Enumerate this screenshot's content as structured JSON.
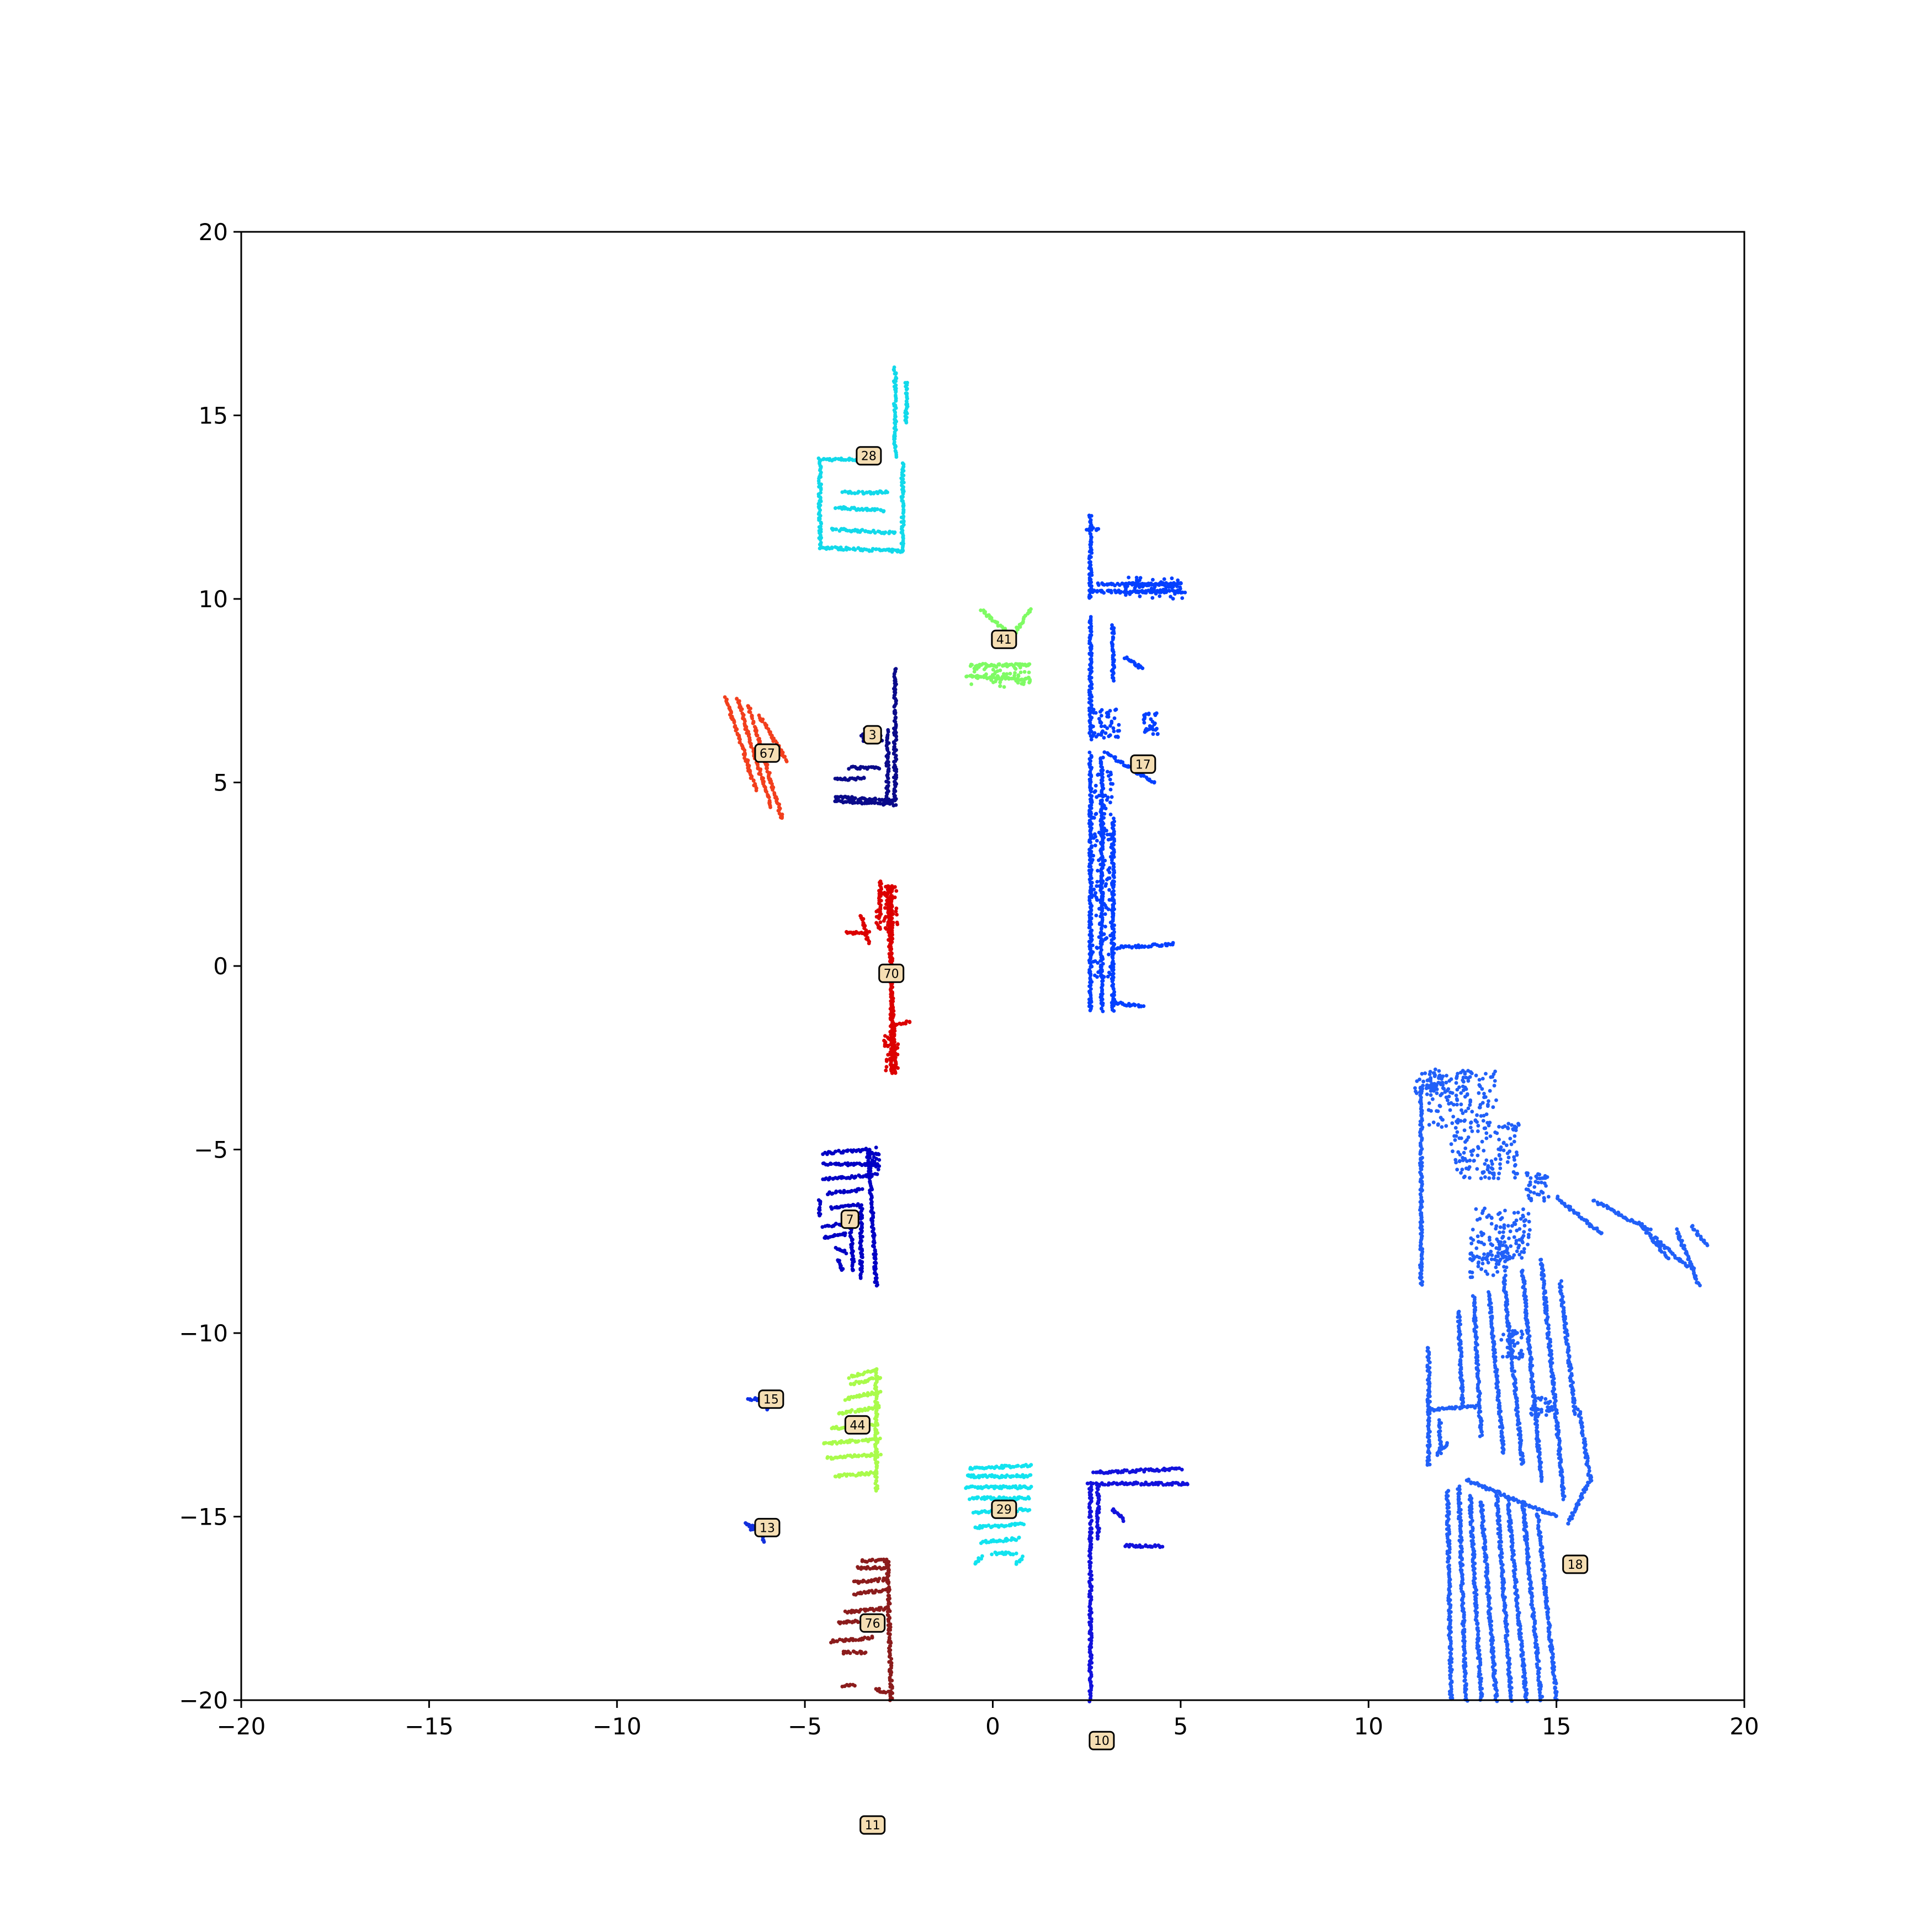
{
  "chart_data": {
    "type": "scatter",
    "title": "",
    "xlabel": "",
    "ylabel": "",
    "xlim": [
      -20,
      20
    ],
    "ylim": [
      -20,
      20
    ],
    "grid": false,
    "legend": "none",
    "xticks": [
      "−20",
      "−15",
      "−10",
      "−5",
      "0",
      "5",
      "10",
      "15",
      "20"
    ],
    "yticks": [
      "−20",
      "−15",
      "−10",
      "−5",
      "0",
      "5",
      "10",
      "15",
      "20"
    ],
    "clusters": [
      {
        "id": "28",
        "color": "#12d9ea",
        "label_xy": [
          -3.3,
          13.9
        ],
        "segments": [
          [
            -4.6,
            13.8,
            -3.6,
            13.8
          ],
          [
            -4.6,
            13.8,
            -4.6,
            11.4
          ],
          [
            -4.6,
            11.4,
            -2.4,
            11.3
          ],
          [
            -2.4,
            13.7,
            -2.4,
            11.3
          ],
          [
            -2.6,
            16.3,
            -2.6,
            13.9
          ],
          [
            -2.3,
            15.9,
            -2.3,
            14.8
          ],
          [
            -4.0,
            12.9,
            -2.8,
            12.9
          ],
          [
            -4.2,
            12.5,
            -2.9,
            12.4
          ],
          [
            -4.3,
            11.9,
            -2.6,
            11.8
          ]
        ],
        "blobs": []
      },
      {
        "id": "41",
        "color": "#7ffb64",
        "label_xy": [
          0.3,
          8.9
        ],
        "segments": [
          [
            -0.7,
            7.9,
            1.0,
            7.8
          ],
          [
            -0.6,
            8.2,
            1.0,
            8.2
          ],
          [
            -0.3,
            9.7,
            0.5,
            9.0
          ],
          [
            1.0,
            9.7,
            0.6,
            9.1
          ]
        ],
        "blobs": [
          [
            0.2,
            7.9,
            0.8,
            0.3
          ]
        ]
      },
      {
        "id": "17",
        "color": "#0440ff",
        "label_xy": [
          4.0,
          5.5
        ],
        "segments": [
          [
            2.6,
            12.3,
            2.6,
            10.0
          ],
          [
            2.5,
            11.9,
            2.8,
            11.9
          ],
          [
            2.6,
            10.2,
            5.1,
            10.2
          ],
          [
            2.8,
            10.4,
            5.0,
            10.4
          ],
          [
            2.6,
            9.5,
            2.6,
            6.2
          ],
          [
            3.2,
            9.3,
            3.2,
            7.8
          ],
          [
            3.5,
            8.4,
            4.0,
            8.1
          ],
          [
            2.6,
            5.8,
            2.6,
            -1.2
          ],
          [
            2.9,
            5.7,
            2.9,
            -1.2
          ],
          [
            3.2,
            4.0,
            3.2,
            -1.2
          ],
          [
            3.0,
            5.8,
            4.3,
            5.0
          ],
          [
            3.2,
            -1.0,
            4.0,
            -1.1
          ],
          [
            3.3,
            0.5,
            4.8,
            0.6
          ]
        ],
        "blobs": [
          [
            4.3,
            10.3,
            0.8,
            0.3
          ],
          [
            2.9,
            2.5,
            0.3,
            2.8
          ],
          [
            3.0,
            6.6,
            0.4,
            0.4
          ],
          [
            4.2,
            6.6,
            0.2,
            0.3
          ]
        ]
      },
      {
        "id": "67",
        "color": "#f23f1d",
        "label_xy": [
          -6.0,
          5.8
        ],
        "segments": [
          [
            -7.1,
            7.3,
            -6.3,
            4.8
          ],
          [
            -6.8,
            7.3,
            -5.9,
            4.3
          ],
          [
            -6.5,
            7.1,
            -5.6,
            4.0
          ],
          [
            -6.2,
            6.8,
            -5.5,
            5.6
          ]
        ],
        "blobs": []
      },
      {
        "id": "3",
        "color": "#0a0a8a",
        "label_xy": [
          -3.2,
          6.3
        ],
        "segments": [
          [
            -4.2,
            4.6,
            -2.6,
            4.5
          ],
          [
            -4.2,
            4.5,
            -2.6,
            4.4
          ],
          [
            -2.6,
            8.1,
            -2.6,
            4.5
          ],
          [
            -2.8,
            6.4,
            -2.8,
            4.6
          ],
          [
            -4.2,
            5.1,
            -3.4,
            5.1
          ],
          [
            -3.8,
            5.4,
            -3.0,
            5.4
          ]
        ],
        "blobs": [
          [
            -3.2,
            6.3,
            0.3,
            0.2
          ]
        ]
      },
      {
        "id": "70",
        "color": "#dc0000",
        "label_xy": [
          -2.7,
          -0.2
        ],
        "segments": [
          [
            -2.8,
            2.2,
            -2.6,
            -2.9
          ],
          [
            -2.7,
            2.1,
            -2.7,
            -2.9
          ],
          [
            -3.0,
            2.3,
            -3.0,
            1.3
          ],
          [
            -3.9,
            0.9,
            -3.3,
            0.9
          ],
          [
            -3.5,
            1.4,
            -3.3,
            0.6
          ],
          [
            -2.6,
            -1.6,
            -2.2,
            -1.5
          ]
        ],
        "blobs": [
          [
            -2.8,
            1.6,
            0.3,
            0.6
          ],
          [
            -2.7,
            -2.4,
            0.2,
            0.5
          ]
        ]
      },
      {
        "id": "7",
        "color": "#0000c4",
        "label_xy": [
          -3.8,
          -6.9
        ],
        "segments": [
          [
            -4.5,
            -5.1,
            -3.3,
            -5.0
          ],
          [
            -4.5,
            -5.4,
            -3.1,
            -5.4
          ],
          [
            -4.5,
            -5.8,
            -3.2,
            -5.7
          ],
          [
            -4.4,
            -6.2,
            -3.5,
            -6.1
          ],
          [
            -4.6,
            -6.4,
            -4.6,
            -6.8
          ],
          [
            -4.3,
            -6.6,
            -3.6,
            -6.5
          ],
          [
            -3.3,
            -5.1,
            -3.1,
            -8.7
          ],
          [
            -3.5,
            -6.5,
            -3.5,
            -8.5
          ],
          [
            -3.8,
            -6.8,
            -3.7,
            -8.3
          ],
          [
            -4.5,
            -7.1,
            -3.8,
            -7.0
          ],
          [
            -4.5,
            -7.4,
            -3.9,
            -7.3
          ],
          [
            -4.2,
            -7.7,
            -3.9,
            -7.8
          ],
          [
            -4.1,
            -8.0,
            -4.0,
            -8.3
          ]
        ],
        "blobs": [
          [
            -3.2,
            -5.3,
            0.2,
            0.4
          ]
        ]
      },
      {
        "id": "15",
        "color": "#0d2fe8",
        "label_xy": [
          -5.9,
          -11.8
        ],
        "segments": [
          [
            -6.5,
            -11.8,
            -6.0,
            -11.8
          ],
          [
            -6.1,
            -11.8,
            -6.0,
            -12.1
          ]
        ],
        "blobs": []
      },
      {
        "id": "44",
        "color": "#a9fb4b",
        "label_xy": [
          -3.6,
          -12.5
        ],
        "segments": [
          [
            -3.8,
            -11.2,
            -3.1,
            -11.0
          ],
          [
            -3.8,
            -11.4,
            -3.0,
            -11.2
          ],
          [
            -3.9,
            -11.8,
            -3.0,
            -11.6
          ],
          [
            -4.1,
            -12.2,
            -3.0,
            -12.0
          ],
          [
            -4.3,
            -12.6,
            -3.1,
            -12.5
          ],
          [
            -4.5,
            -13.0,
            -3.0,
            -12.9
          ],
          [
            -4.4,
            -13.4,
            -3.0,
            -13.3
          ],
          [
            -4.2,
            -13.9,
            -3.1,
            -13.8
          ],
          [
            -3.1,
            -11.0,
            -3.1,
            -14.3
          ]
        ],
        "blobs": []
      },
      {
        "id": "29",
        "color": "#12e3ef",
        "label_xy": [
          0.3,
          -14.8
        ],
        "segments": [
          [
            -0.6,
            -13.7,
            1.0,
            -13.6
          ],
          [
            -0.7,
            -13.9,
            1.0,
            -13.9
          ],
          [
            -0.7,
            -14.2,
            1.0,
            -14.2
          ],
          [
            -0.6,
            -14.5,
            1.0,
            -14.5
          ],
          [
            -0.5,
            -14.9,
            1.0,
            -14.8
          ],
          [
            -0.5,
            -15.3,
            0.8,
            -15.2
          ],
          [
            -0.3,
            -15.7,
            0.7,
            -15.6
          ],
          [
            0.0,
            -16.0,
            0.6,
            -16.0
          ],
          [
            -0.5,
            -16.3,
            -0.3,
            -16.1
          ],
          [
            0.6,
            -16.3,
            0.8,
            -16.1
          ]
        ],
        "blobs": []
      },
      {
        "id": "10",
        "color": "#1212dc",
        "label_xy": [
          2.9,
          -21.1
        ],
        "segments": [
          [
            2.5,
            -14.1,
            5.2,
            -14.1
          ],
          [
            2.7,
            -13.8,
            5.0,
            -13.7
          ],
          [
            2.6,
            -14.2,
            2.6,
            -20.0
          ],
          [
            2.8,
            -14.2,
            2.8,
            -15.6
          ],
          [
            3.5,
            -15.8,
            4.5,
            -15.8
          ],
          [
            3.2,
            -14.8,
            3.5,
            -15.1
          ]
        ],
        "blobs": []
      },
      {
        "id": "13",
        "color": "#1230dc",
        "label_xy": [
          -6.0,
          -15.3
        ],
        "segments": [
          [
            -6.6,
            -15.2,
            -6.0,
            -15.3
          ],
          [
            -6.5,
            -15.3,
            -6.2,
            -15.4
          ],
          [
            -6.1,
            -15.4,
            -6.1,
            -15.7
          ]
        ],
        "blobs": []
      },
      {
        "id": "76",
        "color": "#8b1c1c",
        "label_xy": [
          -3.2,
          -17.9
        ],
        "segments": [
          [
            -3.5,
            -16.2,
            -2.8,
            -16.2
          ],
          [
            -3.6,
            -16.4,
            -2.8,
            -16.4
          ],
          [
            -3.7,
            -16.8,
            -2.8,
            -16.7
          ],
          [
            -3.7,
            -17.1,
            -2.8,
            -17.0
          ],
          [
            -3.9,
            -17.6,
            -2.8,
            -17.5
          ],
          [
            -4.1,
            -17.9,
            -3.1,
            -17.8
          ],
          [
            -4.3,
            -18.4,
            -3.2,
            -18.3
          ],
          [
            -4.0,
            -18.7,
            -3.4,
            -18.7
          ],
          [
            -2.8,
            -16.2,
            -2.7,
            -20.0
          ],
          [
            -4.0,
            -19.6,
            -3.7,
            -19.6
          ],
          [
            -3.1,
            -19.7,
            -2.8,
            -19.8
          ]
        ],
        "blobs": []
      },
      {
        "id": "11",
        "color": "#000000",
        "label_xy": [
          -3.2,
          -23.4
        ],
        "segments": [],
        "blobs": []
      },
      {
        "id": "18",
        "color": "#2160f8",
        "label_xy": [
          15.5,
          -16.3
        ],
        "segments": [
          [
            11.4,
            -3.3,
            11.4,
            -8.7
          ],
          [
            11.6,
            -10.4,
            11.6,
            -13.6
          ],
          [
            11.6,
            -12.1,
            12.9,
            -12.0
          ],
          [
            11.9,
            -12.4,
            11.9,
            -13.3
          ],
          [
            11.8,
            -13.3,
            12.1,
            -13.0
          ],
          [
            12.4,
            -9.4,
            12.5,
            -12.0
          ],
          [
            12.8,
            -9.0,
            13.0,
            -12.8
          ],
          [
            13.2,
            -8.9,
            13.6,
            -13.3
          ],
          [
            13.6,
            -8.5,
            14.1,
            -13.6
          ],
          [
            14.1,
            -8.3,
            14.6,
            -14.0
          ],
          [
            14.6,
            -8.0,
            15.2,
            -14.5
          ],
          [
            15.1,
            -8.6,
            15.5,
            -12.2
          ],
          [
            15.3,
            -15.2,
            15.9,
            -14.0
          ],
          [
            15.9,
            -14.0,
            15.6,
            -12.1
          ],
          [
            12.1,
            -14.3,
            12.2,
            -20.0
          ],
          [
            12.4,
            -14.2,
            12.6,
            -20.0
          ],
          [
            12.7,
            -14.4,
            13.0,
            -20.0
          ],
          [
            13.0,
            -14.6,
            13.4,
            -20.0
          ],
          [
            13.4,
            -14.3,
            13.8,
            -20.0
          ],
          [
            13.7,
            -14.5,
            14.2,
            -20.0
          ],
          [
            14.1,
            -14.6,
            14.6,
            -20.0
          ],
          [
            14.5,
            -14.9,
            15.0,
            -20.0
          ],
          [
            12.6,
            -14.0,
            15.0,
            -15.0
          ],
          [
            15.0,
            -6.3,
            16.2,
            -7.3
          ],
          [
            16.0,
            -6.4,
            17.5,
            -7.2
          ],
          [
            17.2,
            -7.0,
            18.0,
            -8.0
          ],
          [
            17.6,
            -7.4,
            18.5,
            -8.2
          ],
          [
            18.2,
            -7.2,
            18.8,
            -8.7
          ],
          [
            18.6,
            -7.1,
            19.0,
            -7.6
          ]
        ],
        "blobs": [
          [
            12.5,
            -3.6,
            0.9,
            0.8
          ],
          [
            13.1,
            -5.0,
            0.9,
            0.8
          ],
          [
            13.5,
            -7.3,
            0.8,
            0.7
          ],
          [
            13.2,
            -8.0,
            0.5,
            0.5
          ],
          [
            13.8,
            -10.3,
            0.3,
            0.4
          ],
          [
            14.5,
            -6.0,
            0.3,
            0.4
          ],
          [
            14.6,
            -12.0,
            0.3,
            0.3
          ],
          [
            11.7,
            -3.2,
            0.5,
            0.3
          ]
        ]
      }
    ]
  }
}
